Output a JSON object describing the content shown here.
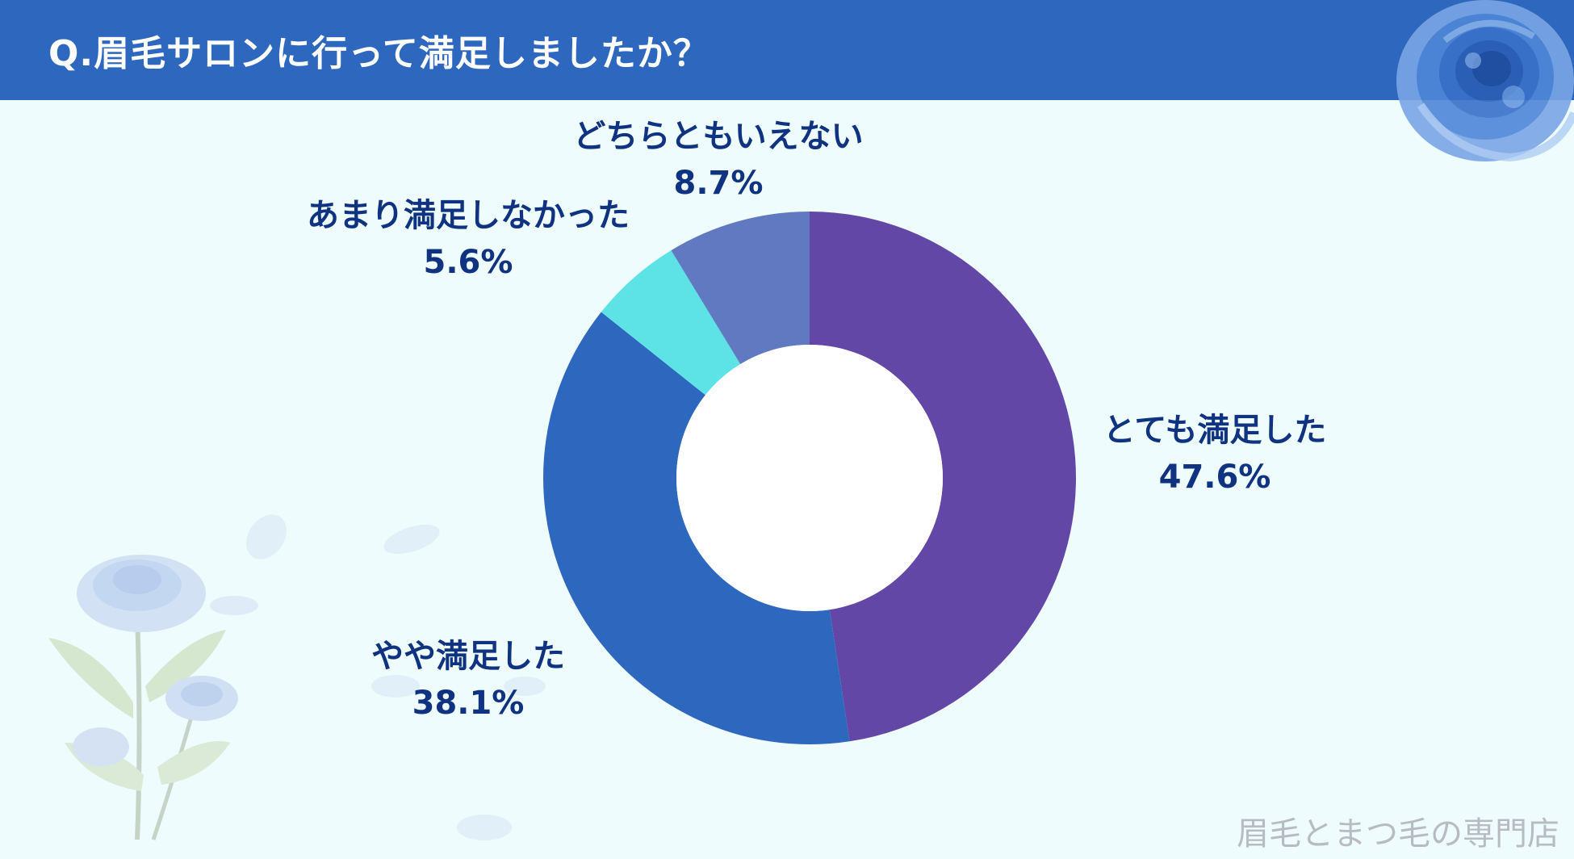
{
  "header": {
    "title": "Q.眉毛サロンに行って満足しましたか？"
  },
  "chart_data": {
    "type": "pie",
    "donut": true,
    "title": "Q.眉毛サロンに行って満足しましたか？",
    "slices": [
      {
        "label": "とても満足した",
        "value": 47.6,
        "display": "47.6%",
        "color": "#6247a7"
      },
      {
        "label": "やや満足した",
        "value": 38.1,
        "display": "38.1%",
        "color": "#2e68be"
      },
      {
        "label": "あまり満足しなかった",
        "value": 5.6,
        "display": "5.6%",
        "color": "#5de3e6"
      },
      {
        "label": "どちらともいえない",
        "value": 8.7,
        "display": "8.7%",
        "color": "#6079c1"
      }
    ],
    "start": "12 o'clock",
    "direction": "clockwise"
  },
  "footer": {
    "watermark": "眉毛とまつ毛の専門店"
  },
  "colors": {
    "header": "#2e68be",
    "background": "#eefcfd",
    "label_text": "#0f3380"
  }
}
